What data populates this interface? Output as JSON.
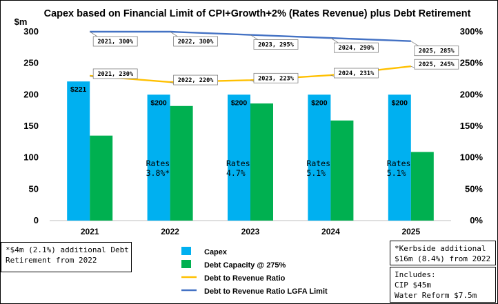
{
  "chart_data": {
    "type": "bar",
    "title": "Capex based on Financial Limit of CPI+Growth+2% (Rates Revenue) plus Debt Retirement",
    "y_unit_label": "$m",
    "categories": [
      "2021",
      "2022",
      "2023",
      "2024",
      "2025"
    ],
    "ylim": [
      0,
      300
    ],
    "y_ticks": [
      "0",
      "50",
      "100",
      "150",
      "200",
      "250",
      "300"
    ],
    "y2lim": [
      0,
      3.0
    ],
    "y2_ticks": [
      "0%",
      "50%",
      "100%",
      "150%",
      "200%",
      "250%",
      "300%"
    ],
    "grid": false,
    "series": [
      {
        "name": "Capex",
        "type": "bar",
        "color": "#00B0F0",
        "values": [
          221,
          200,
          200,
          200,
          200
        ],
        "labels": [
          "$221",
          "$200",
          "$200",
          "$200",
          "$200"
        ]
      },
      {
        "name": "Debt Capacity @ 275%",
        "type": "bar",
        "color": "#00B050",
        "values": [
          135,
          182,
          186,
          159,
          109
        ]
      },
      {
        "name": "Debt to Revenue Ratio",
        "type": "line",
        "axis": "right",
        "color": "#FFC000",
        "values": [
          2.3,
          2.2,
          2.23,
          2.31,
          2.45
        ],
        "labels": [
          "2021, 230%",
          "2022, 220%",
          "2023, 223%",
          "2024, 231%",
          "2025, 245%"
        ]
      },
      {
        "name": "Debt to Revenue Ratio LGFA Limit",
        "type": "line",
        "axis": "right",
        "color": "#4472C4",
        "values": [
          3.0,
          3.0,
          2.95,
          2.9,
          2.85
        ],
        "labels": [
          "2021, 300%",
          "2022, 300%",
          "2023, 295%",
          "2024, 290%",
          "2025, 285%"
        ]
      }
    ],
    "bar_annotations": [
      "",
      "Rates\n3.8%*",
      "Rates\n4.7%",
      "Rates\n5.1%",
      "Rates\n5.1%"
    ],
    "legend_position": "bottom-center"
  },
  "notes": {
    "left": "*$4m (2.1%) additional Debt\nRetirement from 2022",
    "right_top": "*Kerbside additional\n$16m (8.4%) from 2022",
    "right_bottom": "Includes:\nCIP $45m\nWater Reform $7.5m"
  }
}
